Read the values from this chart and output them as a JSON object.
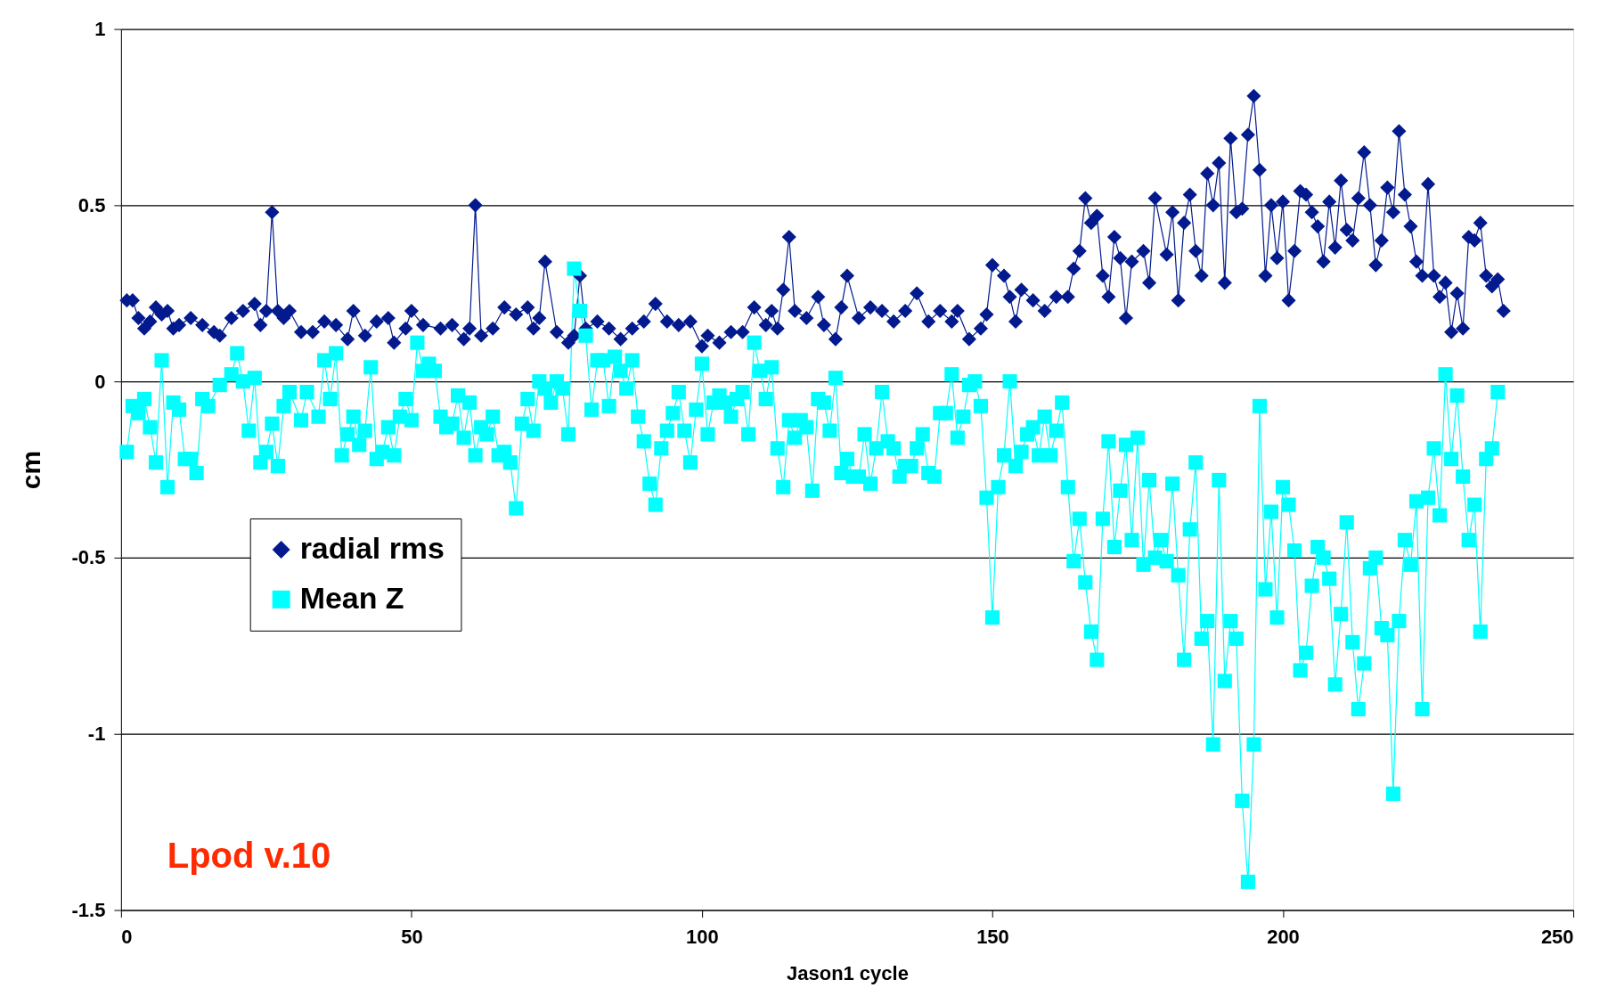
{
  "chart_data": {
    "type": "line",
    "xlabel": "Jason1 cycle",
    "ylabel": "cm",
    "xlim": [
      0,
      250
    ],
    "xticks": [
      0,
      50,
      100,
      150,
      200,
      250
    ],
    "ylim": [
      -1.5,
      1
    ],
    "yticks": [
      -1.5,
      -1,
      -0.5,
      0,
      0.5,
      1
    ],
    "grid": "y",
    "legend": "left",
    "line_style": "solid",
    "annotations": [
      "Lpod v.10"
    ],
    "series": [
      {
        "name": "radial rms",
        "color": "#021a8e",
        "marker": "diamond",
        "x": [
          1,
          2,
          3,
          4,
          5,
          6,
          7,
          8,
          9,
          10,
          12,
          14,
          16,
          17,
          19,
          21,
          23,
          24,
          25,
          26,
          27,
          28,
          29,
          31,
          33,
          35,
          37,
          39,
          40,
          42,
          44,
          46,
          47,
          49,
          50,
          52,
          55,
          57,
          59,
          60,
          61,
          62,
          64,
          66,
          68,
          70,
          71,
          72,
          73,
          75,
          77,
          78,
          79,
          80,
          82,
          84,
          86,
          88,
          90,
          92,
          94,
          96,
          98,
          100,
          101,
          103,
          105,
          107,
          109,
          111,
          112,
          113,
          114,
          115,
          116,
          118,
          120,
          121,
          123,
          124,
          125,
          127,
          129,
          131,
          133,
          135,
          137,
          139,
          141,
          143,
          144,
          146,
          148,
          149,
          150,
          152,
          153,
          154,
          155,
          157,
          159,
          161,
          163,
          164,
          165,
          166,
          167,
          168,
          169,
          170,
          171,
          172,
          173,
          174,
          176,
          177,
          178,
          180,
          181,
          182,
          183,
          184,
          185,
          186,
          187,
          188,
          189,
          190,
          191,
          192,
          193,
          194,
          195,
          196,
          197,
          198,
          199,
          200,
          201,
          202,
          203,
          204,
          205,
          206,
          207,
          208,
          209,
          210,
          211,
          212,
          213,
          214,
          215,
          216,
          217,
          218,
          219,
          220,
          221,
          222,
          223,
          224,
          225,
          226,
          227,
          228,
          229,
          230,
          231,
          232,
          233,
          234,
          235,
          236,
          237,
          238
        ],
        "values": [
          0.23,
          0.23,
          0.18,
          0.15,
          0.17,
          0.21,
          0.19,
          0.2,
          0.15,
          0.16,
          0.18,
          0.16,
          0.14,
          0.13,
          0.18,
          0.2,
          0.22,
          0.16,
          0.2,
          0.48,
          0.2,
          0.18,
          0.2,
          0.14,
          0.14,
          0.17,
          0.16,
          0.12,
          0.2,
          0.13,
          0.17,
          0.18,
          0.11,
          0.15,
          0.2,
          0.16,
          0.15,
          0.16,
          0.12,
          0.15,
          0.5,
          0.13,
          0.15,
          0.21,
          0.19,
          0.21,
          0.15,
          0.18,
          0.34,
          0.14,
          0.11,
          0.13,
          0.3,
          0.15,
          0.17,
          0.15,
          0.12,
          0.15,
          0.17,
          0.22,
          0.17,
          0.16,
          0.17,
          0.1,
          0.13,
          0.11,
          0.14,
          0.14,
          0.21,
          0.16,
          0.2,
          0.15,
          0.26,
          0.41,
          0.2,
          0.18,
          0.24,
          0.16,
          0.12,
          0.21,
          0.3,
          0.18,
          0.21,
          0.2,
          0.17,
          0.2,
          0.25,
          0.17,
          0.2,
          0.17,
          0.2,
          0.12,
          0.15,
          0.19,
          0.33,
          0.3,
          0.24,
          0.17,
          0.26,
          0.23,
          0.2,
          0.24,
          0.24,
          0.32,
          0.37,
          0.52,
          0.45,
          0.47,
          0.3,
          0.24,
          0.41,
          0.35,
          0.18,
          0.34,
          0.37,
          0.28,
          0.52,
          0.36,
          0.48,
          0.23,
          0.45,
          0.53,
          0.37,
          0.3,
          0.59,
          0.5,
          0.62,
          0.28,
          0.69,
          0.48,
          0.49,
          0.7,
          0.81,
          0.6,
          0.3,
          0.5,
          0.35,
          0.51,
          0.23,
          0.37,
          0.54,
          0.53,
          0.48,
          0.44,
          0.34,
          0.51,
          0.38,
          0.57,
          0.43,
          0.4,
          0.52,
          0.65,
          0.5,
          0.33,
          0.4,
          0.55,
          0.48,
          0.71,
          0.53,
          0.44,
          0.34,
          0.3,
          0.56,
          0.3,
          0.24,
          0.28,
          0.14,
          0.25,
          0.15,
          0.41,
          0.4,
          0.45,
          0.3,
          0.27,
          0.29,
          0.2
        ]
      },
      {
        "name": "Mean Z",
        "color": "#00ffff",
        "marker": "square",
        "x": [
          1,
          2,
          3,
          4,
          5,
          6,
          7,
          8,
          9,
          10,
          11,
          12,
          13,
          14,
          15,
          17,
          19,
          20,
          21,
          22,
          23,
          24,
          25,
          26,
          27,
          28,
          29,
          31,
          32,
          34,
          35,
          36,
          37,
          38,
          39,
          40,
          41,
          42,
          43,
          44,
          45,
          46,
          47,
          48,
          49,
          50,
          51,
          52,
          53,
          54,
          55,
          56,
          57,
          58,
          59,
          60,
          61,
          62,
          63,
          64,
          65,
          66,
          67,
          68,
          69,
          70,
          71,
          72,
          73,
          74,
          75,
          76,
          77,
          78,
          79,
          80,
          81,
          82,
          83,
          84,
          85,
          86,
          87,
          88,
          89,
          90,
          91,
          92,
          93,
          94,
          95,
          96,
          97,
          98,
          99,
          100,
          101,
          102,
          103,
          104,
          105,
          106,
          107,
          108,
          109,
          110,
          111,
          112,
          113,
          114,
          115,
          116,
          117,
          118,
          119,
          120,
          121,
          122,
          123,
          124,
          125,
          126,
          127,
          128,
          129,
          130,
          131,
          132,
          133,
          134,
          135,
          136,
          137,
          138,
          139,
          140,
          141,
          142,
          143,
          144,
          145,
          146,
          147,
          148,
          149,
          150,
          151,
          152,
          153,
          154,
          155,
          156,
          157,
          158,
          159,
          160,
          161,
          162,
          163,
          164,
          165,
          166,
          167,
          168,
          169,
          170,
          171,
          172,
          173,
          174,
          175,
          176,
          177,
          178,
          179,
          180,
          181,
          182,
          183,
          184,
          185,
          186,
          187,
          188,
          189,
          190,
          191,
          192,
          193,
          194,
          195,
          196,
          197,
          198,
          199,
          200,
          201,
          202,
          203,
          204,
          205,
          206,
          207,
          208,
          209,
          210,
          211,
          212,
          213,
          214,
          215,
          216,
          217,
          218,
          219,
          220,
          221,
          222,
          223,
          224,
          225,
          226,
          227,
          228,
          229,
          230,
          231,
          232,
          233,
          234,
          235,
          236,
          237
        ],
        "values": [
          -0.2,
          -0.07,
          -0.09,
          -0.05,
          -0.13,
          -0.23,
          0.06,
          -0.3,
          -0.06,
          -0.08,
          -0.22,
          -0.22,
          -0.26,
          -0.05,
          -0.07,
          -0.01,
          0.02,
          0.08,
          0.0,
          -0.14,
          0.01,
          -0.23,
          -0.2,
          -0.12,
          -0.24,
          -0.07,
          -0.03,
          -0.11,
          -0.03,
          -0.1,
          0.06,
          -0.05,
          0.08,
          -0.21,
          -0.15,
          -0.1,
          -0.18,
          -0.14,
          0.04,
          -0.22,
          -0.2,
          -0.13,
          -0.21,
          -0.1,
          -0.05,
          -0.11,
          0.11,
          0.03,
          0.05,
          0.03,
          -0.1,
          -0.13,
          -0.12,
          -0.04,
          -0.16,
          -0.06,
          -0.21,
          -0.13,
          -0.15,
          -0.1,
          -0.21,
          -0.2,
          -0.23,
          -0.36,
          -0.12,
          -0.05,
          -0.14,
          0.0,
          -0.02,
          -0.06,
          0.0,
          -0.02,
          -0.15,
          0.32,
          0.2,
          0.13,
          -0.08,
          0.06,
          0.06,
          -0.07,
          0.07,
          0.03,
          -0.02,
          0.06,
          -0.1,
          -0.17,
          -0.29,
          -0.35,
          -0.19,
          -0.14,
          -0.09,
          -0.03,
          -0.14,
          -0.23,
          -0.08,
          0.05,
          -0.15,
          -0.06,
          -0.04,
          -0.06,
          -0.1,
          -0.05,
          -0.03,
          -0.15,
          0.11,
          0.03,
          -0.05,
          0.04,
          -0.19,
          -0.3,
          -0.11,
          -0.16,
          -0.11,
          -0.13,
          -0.31,
          -0.05,
          -0.06,
          -0.14,
          0.01,
          -0.26,
          -0.22,
          -0.27,
          -0.27,
          -0.15,
          -0.29,
          -0.19,
          -0.03,
          -0.17,
          -0.19,
          -0.27,
          -0.24,
          -0.24,
          -0.19,
          -0.15,
          -0.26,
          -0.27,
          -0.09,
          -0.09,
          0.02,
          -0.16,
          -0.1,
          -0.01,
          0.0,
          -0.07,
          -0.33,
          -0.67,
          -0.3,
          -0.21,
          0.0,
          -0.24,
          -0.2,
          -0.15,
          -0.13,
          -0.21,
          -0.1,
          -0.21,
          -0.14,
          -0.06,
          -0.3,
          -0.51,
          -0.39,
          -0.57,
          -0.71,
          -0.79,
          -0.39,
          -0.17,
          -0.47,
          -0.31,
          -0.18,
          -0.45,
          -0.16,
          -0.52,
          -0.28,
          -0.5,
          -0.45,
          -0.51,
          -0.29,
          -0.55,
          -0.79,
          -0.42,
          -0.23,
          -0.73,
          -0.68,
          -1.03,
          -0.28,
          -0.85,
          -0.68,
          -0.73,
          -1.19,
          -1.42,
          -1.03,
          -0.07,
          -0.59,
          -0.37,
          -0.67,
          -0.3,
          -0.35,
          -0.48,
          -0.82,
          -0.77,
          -0.58,
          -0.47,
          -0.5,
          -0.56,
          -0.86,
          -0.66,
          -0.4,
          -0.74,
          -0.93,
          -0.8,
          -0.53,
          -0.5,
          -0.7,
          -0.72,
          -1.17,
          -0.68,
          -0.45,
          -0.52,
          -0.34,
          -0.93,
          -0.33,
          -0.19,
          -0.38,
          0.02,
          -0.22,
          -0.04,
          -0.27,
          -0.45,
          -0.35,
          -0.71,
          -0.22,
          -0.19,
          -0.03
        ]
      }
    ]
  }
}
